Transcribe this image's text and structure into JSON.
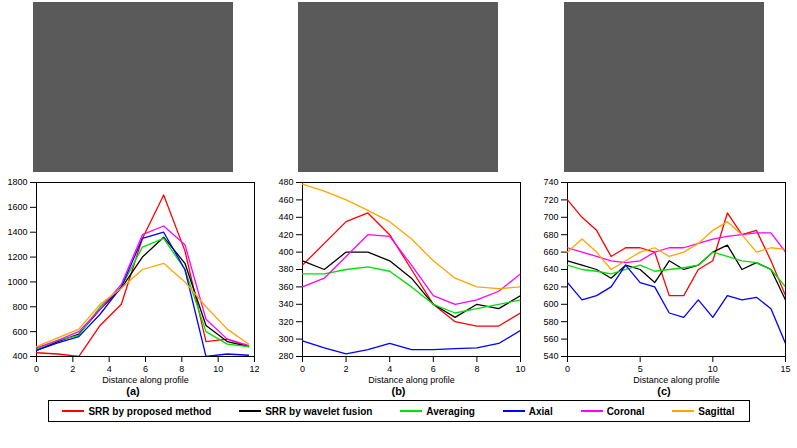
{
  "chart_data": [
    {
      "type": "line",
      "title": "(a)",
      "x_label": "Distance along profile",
      "x": [
        0,
        1.17,
        2.33,
        3.5,
        4.67,
        5.83,
        7,
        8.17,
        9.33,
        10.5,
        11.67
      ],
      "xlim": [
        0,
        12
      ],
      "xticks": [
        0,
        2,
        4,
        6,
        8,
        10,
        12
      ],
      "ylim": [
        400,
        1800
      ],
      "yticks": [
        400,
        600,
        800,
        1000,
        1200,
        1400,
        1600,
        1800
      ],
      "legend": "bottom",
      "series": [
        {
          "name": "SRR by proposed method",
          "color": "#ff0000",
          "values": [
            430,
            420,
            400,
            650,
            820,
            1350,
            1700,
            1250,
            520,
            540,
            480
          ]
        },
        {
          "name": "SRR by wavelet fusion",
          "color": "#000000",
          "values": [
            450,
            520,
            580,
            780,
            950,
            1200,
            1360,
            1150,
            650,
            520,
            480
          ]
        },
        {
          "name": "Averaging",
          "color": "#00e000",
          "values": [
            460,
            530,
            570,
            800,
            960,
            1280,
            1350,
            1100,
            600,
            500,
            480
          ]
        },
        {
          "name": "Axial",
          "color": "#0000ff",
          "values": [
            450,
            510,
            560,
            740,
            960,
            1350,
            1400,
            1100,
            400,
            420,
            410
          ]
        },
        {
          "name": "Coronal",
          "color": "#ff00ff",
          "values": [
            470,
            530,
            600,
            780,
            980,
            1380,
            1450,
            1300,
            700,
            540,
            490
          ]
        },
        {
          "name": "Sagittal",
          "color": "#ffa500",
          "values": [
            480,
            550,
            620,
            820,
            950,
            1100,
            1150,
            1000,
            800,
            620,
            500
          ]
        }
      ]
    },
    {
      "type": "line",
      "title": "(b)",
      "x_label": "Distance along profile",
      "x": [
        0,
        1,
        2,
        3,
        4,
        5,
        6,
        7,
        8,
        9,
        10
      ],
      "xlim": [
        0,
        10
      ],
      "xticks": [
        0,
        2,
        4,
        6,
        8,
        10
      ],
      "ylim": [
        280,
        480
      ],
      "yticks": [
        280,
        300,
        320,
        340,
        360,
        380,
        400,
        420,
        440,
        460,
        480
      ],
      "legend": "bottom",
      "series": [
        {
          "name": "SRR by proposed method",
          "color": "#ff0000",
          "values": [
            385,
            410,
            435,
            445,
            420,
            380,
            340,
            320,
            315,
            315,
            330
          ]
        },
        {
          "name": "SRR by wavelet fusion",
          "color": "#000000",
          "values": [
            390,
            380,
            400,
            400,
            390,
            370,
            340,
            325,
            340,
            335,
            350
          ]
        },
        {
          "name": "Averaging",
          "color": "#00e000",
          "values": [
            375,
            375,
            380,
            383,
            378,
            360,
            340,
            330,
            335,
            340,
            345
          ]
        },
        {
          "name": "Axial",
          "color": "#0000ff",
          "values": [
            298,
            290,
            283,
            288,
            295,
            288,
            288,
            289,
            290,
            295,
            310
          ]
        },
        {
          "name": "Coronal",
          "color": "#ff00ff",
          "values": [
            360,
            370,
            395,
            420,
            418,
            385,
            350,
            340,
            345,
            355,
            375
          ]
        },
        {
          "name": "Sagittal",
          "color": "#ffa500",
          "values": [
            478,
            470,
            460,
            448,
            435,
            415,
            390,
            370,
            360,
            358,
            360
          ]
        }
      ]
    },
    {
      "type": "line",
      "title": "(c)",
      "x_label": "Distance along profile",
      "x": [
        0,
        1,
        2,
        3,
        4,
        5,
        6,
        7,
        8,
        9,
        10,
        11,
        12,
        13,
        14,
        15
      ],
      "xlim": [
        0,
        15
      ],
      "xticks": [
        0,
        5,
        10,
        15
      ],
      "ylim": [
        540,
        740
      ],
      "yticks": [
        540,
        560,
        580,
        600,
        620,
        640,
        660,
        680,
        700,
        720,
        740
      ],
      "legend": "bottom",
      "series": [
        {
          "name": "SRR by proposed method",
          "color": "#ff0000",
          "values": [
            720,
            700,
            685,
            655,
            665,
            665,
            660,
            610,
            610,
            640,
            650,
            705,
            680,
            685,
            650,
            610
          ]
        },
        {
          "name": "SRR by wavelet fusion",
          "color": "#000000",
          "values": [
            650,
            645,
            640,
            630,
            645,
            640,
            625,
            650,
            640,
            645,
            660,
            668,
            640,
            648,
            640,
            605
          ]
        },
        {
          "name": "Averaging",
          "color": "#00e000",
          "values": [
            645,
            640,
            638,
            635,
            640,
            645,
            638,
            640,
            642,
            645,
            660,
            655,
            650,
            648,
            640,
            620
          ]
        },
        {
          "name": "Axial",
          "color": "#0000ff",
          "values": [
            625,
            605,
            610,
            620,
            645,
            625,
            620,
            590,
            585,
            605,
            585,
            610,
            605,
            608,
            595,
            555
          ]
        },
        {
          "name": "Coronal",
          "color": "#ff00ff",
          "values": [
            665,
            660,
            655,
            650,
            648,
            650,
            660,
            665,
            665,
            670,
            675,
            678,
            680,
            682,
            682,
            660
          ]
        },
        {
          "name": "Sagittal",
          "color": "#ffa500",
          "values": [
            660,
            675,
            660,
            640,
            650,
            660,
            665,
            655,
            660,
            670,
            685,
            695,
            680,
            660,
            665,
            663
          ]
        }
      ]
    }
  ]
}
